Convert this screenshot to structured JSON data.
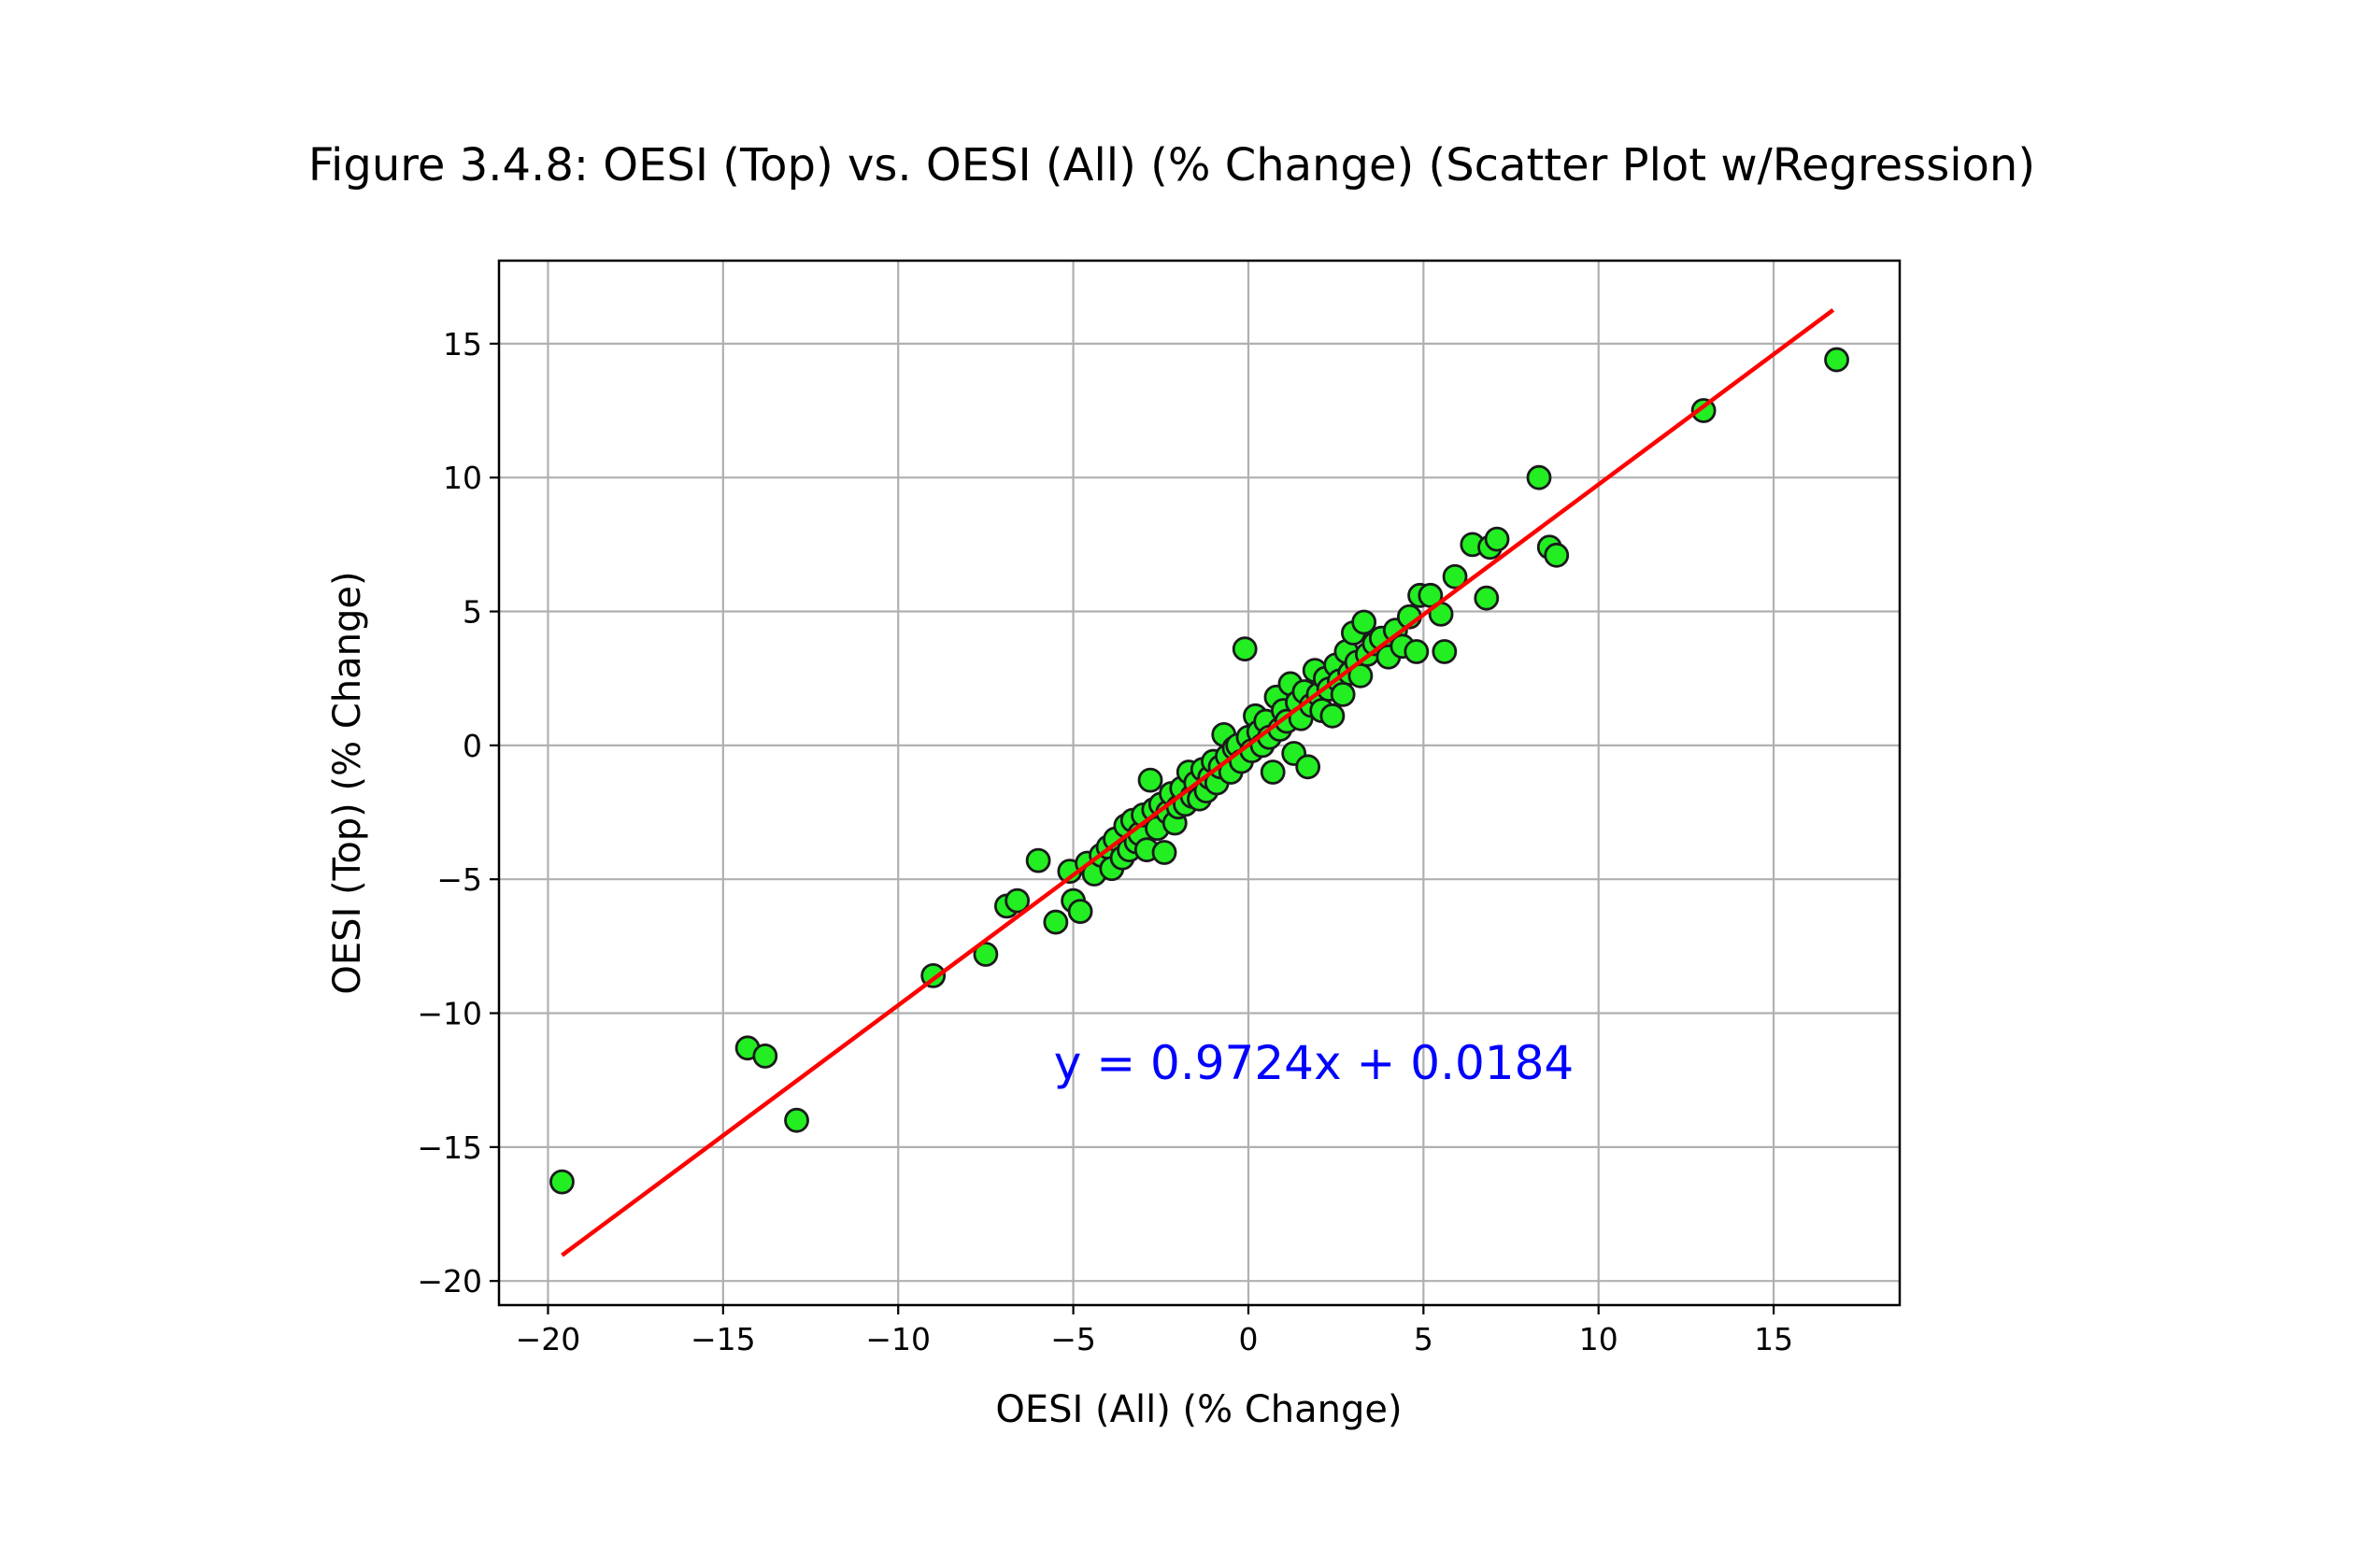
{
  "chart_data": {
    "type": "scatter",
    "title": "Figure 3.4.8: OESI (Top) vs. OESI (All) (% Change) (Scatter Plot w/Regression)",
    "xlabel": "OESI (All) (% Change)",
    "ylabel": "OESI (Top) (% Change)",
    "xlim": [
      -21.4,
      18.6
    ],
    "ylim": [
      -20.9,
      18.1
    ],
    "xticks": [
      -20,
      -15,
      -10,
      -5,
      0,
      5,
      10,
      15
    ],
    "yticks": [
      -20,
      -15,
      -10,
      -5,
      0,
      5,
      10,
      15
    ],
    "grid": true,
    "point_color": "#22ee22",
    "point_edge_color": "#1a1a1a",
    "regression": {
      "slope": 0.9724,
      "intercept": 0.0184,
      "x_range": [
        -19.6,
        16.7
      ],
      "color": "#ff0000",
      "equation_text": "y = 0.9724x + 0.0184",
      "equation_color": "#0000ff"
    },
    "points": [
      [
        -19.6,
        -16.3
      ],
      [
        -14.3,
        -11.3
      ],
      [
        -13.8,
        -11.6
      ],
      [
        -12.9,
        -14.0
      ],
      [
        -9.0,
        -8.6
      ],
      [
        -7.5,
        -7.8
      ],
      [
        -6.9,
        -6.0
      ],
      [
        -6.6,
        -5.8
      ],
      [
        -6.0,
        -4.3
      ],
      [
        -5.5,
        -6.6
      ],
      [
        -5.1,
        -4.7
      ],
      [
        -5.0,
        -5.8
      ],
      [
        -4.8,
        -6.2
      ],
      [
        -4.6,
        -4.4
      ],
      [
        -4.4,
        -4.8
      ],
      [
        -4.2,
        -4.1
      ],
      [
        -4.0,
        -3.8
      ],
      [
        -3.9,
        -4.6
      ],
      [
        -3.8,
        -3.5
      ],
      [
        -3.6,
        -4.2
      ],
      [
        -3.5,
        -3.0
      ],
      [
        -3.4,
        -3.9
      ],
      [
        -3.3,
        -2.8
      ],
      [
        -3.2,
        -3.6
      ],
      [
        -3.1,
        -3.3
      ],
      [
        -3.0,
        -2.6
      ],
      [
        -2.9,
        -3.9
      ],
      [
        -2.8,
        -1.3
      ],
      [
        -2.7,
        -2.4
      ],
      [
        -2.6,
        -3.1
      ],
      [
        -2.5,
        -2.2
      ],
      [
        -2.4,
        -4.0
      ],
      [
        -2.3,
        -2.5
      ],
      [
        -2.2,
        -1.8
      ],
      [
        -2.1,
        -2.9
      ],
      [
        -2.0,
        -2.3
      ],
      [
        -1.9,
        -1.6
      ],
      [
        -1.8,
        -2.2
      ],
      [
        -1.7,
        -1.0
      ],
      [
        -1.6,
        -1.9
      ],
      [
        -1.5,
        -1.4
      ],
      [
        -1.4,
        -2.0
      ],
      [
        -1.3,
        -0.9
      ],
      [
        -1.2,
        -1.7
      ],
      [
        -1.1,
        -1.2
      ],
      [
        -1.0,
        -0.6
      ],
      [
        -0.9,
        -1.4
      ],
      [
        -0.8,
        -0.8
      ],
      [
        -0.7,
        0.4
      ],
      [
        -0.6,
        -0.4
      ],
      [
        -0.5,
        -1.0
      ],
      [
        -0.4,
        -0.1
      ],
      [
        -0.3,
        0.0
      ],
      [
        -0.2,
        -0.6
      ],
      [
        -0.1,
        3.6
      ],
      [
        0.0,
        0.3
      ],
      [
        0.1,
        -0.2
      ],
      [
        0.2,
        1.1
      ],
      [
        0.3,
        0.5
      ],
      [
        0.4,
        0.0
      ],
      [
        0.5,
        0.9
      ],
      [
        0.6,
        0.3
      ],
      [
        0.7,
        -1.0
      ],
      [
        0.8,
        1.8
      ],
      [
        0.9,
        0.6
      ],
      [
        1.0,
        1.3
      ],
      [
        1.1,
        0.9
      ],
      [
        1.2,
        2.3
      ],
      [
        1.3,
        -0.3
      ],
      [
        1.4,
        1.6
      ],
      [
        1.5,
        1.0
      ],
      [
        1.6,
        2.0
      ],
      [
        1.7,
        -0.8
      ],
      [
        1.8,
        1.5
      ],
      [
        1.9,
        2.8
      ],
      [
        2.0,
        1.9
      ],
      [
        2.1,
        1.3
      ],
      [
        2.2,
        2.5
      ],
      [
        2.3,
        2.1
      ],
      [
        2.4,
        1.1
      ],
      [
        2.5,
        3.0
      ],
      [
        2.6,
        2.4
      ],
      [
        2.7,
        1.9
      ],
      [
        2.8,
        3.5
      ],
      [
        2.9,
        2.7
      ],
      [
        3.0,
        4.2
      ],
      [
        3.1,
        3.1
      ],
      [
        3.2,
        2.6
      ],
      [
        3.3,
        4.6
      ],
      [
        3.4,
        3.4
      ],
      [
        3.6,
        3.8
      ],
      [
        3.8,
        4.0
      ],
      [
        4.0,
        3.3
      ],
      [
        4.2,
        4.3
      ],
      [
        4.4,
        3.7
      ],
      [
        4.6,
        4.8
      ],
      [
        4.8,
        3.5
      ],
      [
        4.9,
        5.6
      ],
      [
        5.2,
        5.6
      ],
      [
        5.5,
        4.9
      ],
      [
        5.6,
        3.5
      ],
      [
        5.9,
        6.3
      ],
      [
        6.4,
        7.5
      ],
      [
        6.8,
        5.5
      ],
      [
        6.9,
        7.4
      ],
      [
        7.1,
        7.7
      ],
      [
        8.3,
        10.0
      ],
      [
        8.6,
        7.4
      ],
      [
        8.8,
        7.1
      ],
      [
        13.0,
        12.5
      ],
      [
        16.8,
        14.4
      ]
    ]
  }
}
